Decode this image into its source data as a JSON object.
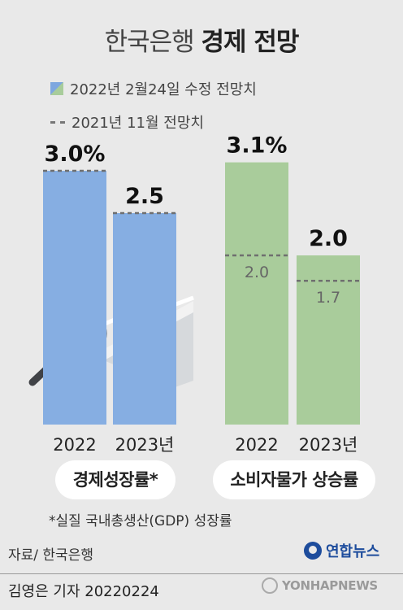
{
  "title_light": "한국은행",
  "title_bold": "경제 전망",
  "legend": {
    "current": "2022년 2월24일 수정 전망치",
    "previous": "2021년 11월 전망치"
  },
  "colors": {
    "gdp_bar": "#86aee2",
    "cpi_bar": "#a9cc9b",
    "previous_line": "#6f6f6f",
    "background": "#e9e9e9"
  },
  "chart_data": [
    {
      "type": "bar",
      "name": "경제성장률*",
      "categories": [
        "2022",
        "2023년"
      ],
      "series": [
        {
          "name": "2022년 2월24일 수정 전망치",
          "values": [
            3.0,
            2.5
          ]
        },
        {
          "name": "2021년 11월 전망치",
          "values": [
            3.0,
            2.5
          ]
        }
      ],
      "value_labels": [
        "3.0%",
        "2.5"
      ],
      "previous_labels": [
        "",
        ""
      ],
      "ylim": [
        0,
        3.1
      ],
      "grid": false
    },
    {
      "type": "bar",
      "name": "소비자물가 상승률",
      "categories": [
        "2022",
        "2023년"
      ],
      "series": [
        {
          "name": "2022년 2월24일 수정 전망치",
          "values": [
            3.1,
            2.0
          ]
        },
        {
          "name": "2021년 11월 전망치",
          "values": [
            2.0,
            1.7
          ]
        }
      ],
      "value_labels": [
        "3.1%",
        "2.0"
      ],
      "previous_labels": [
        "2.0",
        "1.7"
      ],
      "ylim": [
        0,
        3.1
      ],
      "grid": false
    }
  ],
  "footnote": "*실질 국내총생산(GDP) 성장률",
  "source": "자료/ 한국은행",
  "logo_text": "연합뉴스",
  "byline": "김영은 기자  20220224",
  "watermark": "YONHAPNEWS"
}
